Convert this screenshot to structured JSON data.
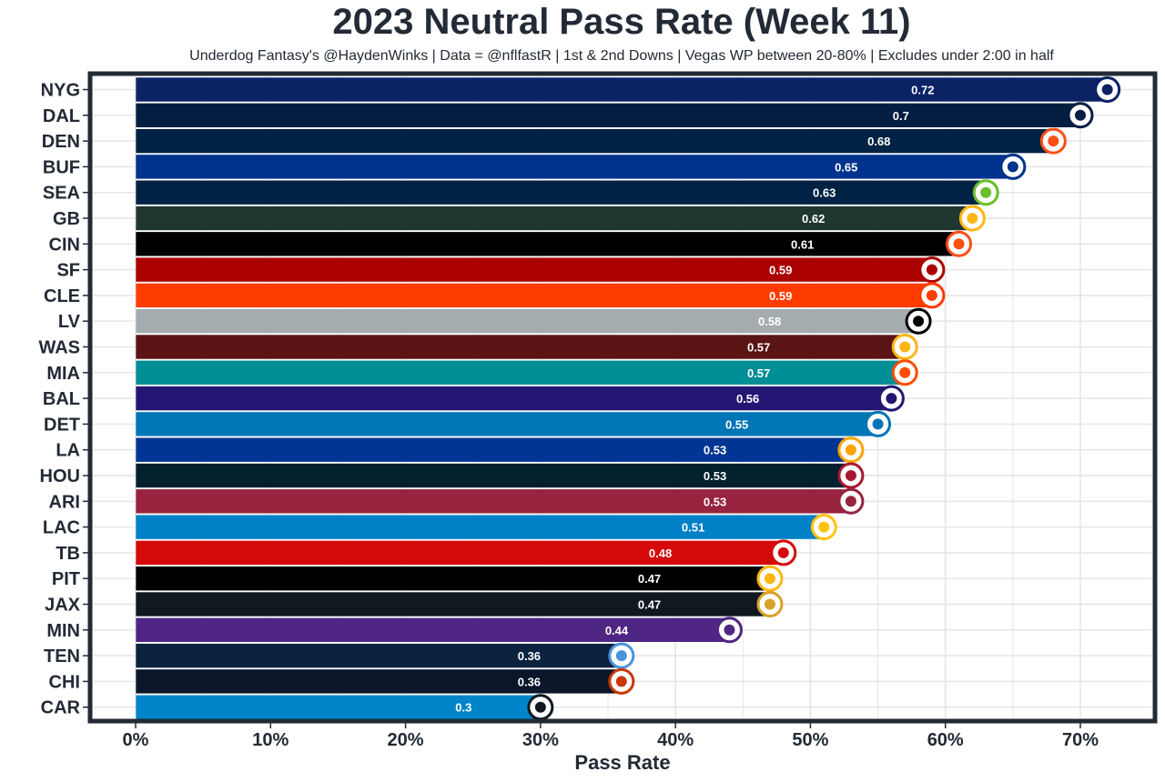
{
  "chart_data": {
    "type": "bar",
    "orientation": "horizontal",
    "title": "2023 Neutral Pass Rate (Week 11)",
    "subtitle": "Underdog Fantasy's @HaydenWinks | Data = @nflfastR | 1st & 2nd Downs | Vegas WP between 20-80% | Excludes under 2:00 in half",
    "xlabel": "Pass Rate",
    "ylabel": "",
    "xlim": [
      0,
      0.72
    ],
    "xticks": [
      0,
      0.1,
      0.2,
      0.3,
      0.4,
      0.5,
      0.6,
      0.7
    ],
    "xtick_labels": [
      "0%",
      "10%",
      "20%",
      "30%",
      "40%",
      "50%",
      "60%",
      "70%"
    ],
    "grid": true,
    "categories": [
      "NYG",
      "DAL",
      "DEN",
      "BUF",
      "SEA",
      "GB",
      "CIN",
      "SF",
      "CLE",
      "LV",
      "WAS",
      "MIA",
      "BAL",
      "DET",
      "LA",
      "HOU",
      "ARI",
      "LAC",
      "TB",
      "PIT",
      "JAX",
      "MIN",
      "TEN",
      "CHI",
      "CAR"
    ],
    "values": [
      0.72,
      0.7,
      0.68,
      0.65,
      0.63,
      0.62,
      0.61,
      0.59,
      0.59,
      0.58,
      0.57,
      0.57,
      0.56,
      0.55,
      0.53,
      0.53,
      0.53,
      0.51,
      0.48,
      0.47,
      0.47,
      0.44,
      0.36,
      0.36,
      0.3
    ],
    "value_labels": [
      "0.72",
      "0.7",
      "0.68",
      "0.65",
      "0.63",
      "0.62",
      "0.61",
      "0.59",
      "0.59",
      "0.58",
      "0.57",
      "0.57",
      "0.56",
      "0.55",
      "0.53",
      "0.53",
      "0.53",
      "0.51",
      "0.48",
      "0.47",
      "0.47",
      "0.44",
      "0.36",
      "0.36",
      "0.3"
    ],
    "bar_colors": [
      "#0b2265",
      "#041e42",
      "#002244",
      "#00338d",
      "#002244",
      "#203731",
      "#000000",
      "#aa0000",
      "#ff3c00",
      "#a5acaf",
      "#5a1414",
      "#008e97",
      "#241773",
      "#0076b6",
      "#003594",
      "#03202f",
      "#97233f",
      "#0080c6",
      "#d50a0a",
      "#000000",
      "#101820",
      "#4f2683",
      "#0c2340",
      "#0b162a",
      "#0085ca"
    ],
    "logo_colors": [
      "#0b2265",
      "#041e42",
      "#fb4f14",
      "#00338d",
      "#69be28",
      "#ffb612",
      "#fb4f14",
      "#aa0000",
      "#ff3c00",
      "#000000",
      "#ffb612",
      "#fc4c02",
      "#241773",
      "#0076b6",
      "#ffa300",
      "#a71930",
      "#97233f",
      "#ffc20e",
      "#d50a0a",
      "#ffb612",
      "#d7a22a",
      "#4f2683",
      "#4b92db",
      "#c83803",
      "#101820"
    ]
  },
  "colors": {
    "panel_border": "#222a35",
    "grid": "#e4e4e4",
    "text": "#222a35",
    "bar_outline": "#ffffff"
  }
}
